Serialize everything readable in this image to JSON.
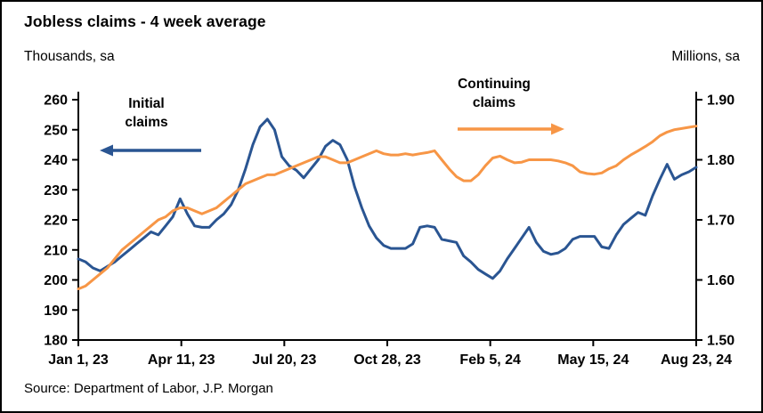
{
  "title": "Jobless claims - 4 week average",
  "left_axis_title": "Thousands, sa",
  "right_axis_title": "Millions, sa",
  "source": "Source: Department of Labor, J.P. Morgan",
  "annotations": {
    "initial": {
      "line1": "Initial",
      "line2": "claims",
      "arrow_direction": "left"
    },
    "continuing": {
      "line1": "Continuing",
      "line2": "claims",
      "arrow_direction": "right"
    }
  },
  "chart_data": {
    "type": "line",
    "title": "Jobless claims - 4 week average",
    "grid": false,
    "legend": "annotated arrows on plot",
    "x_tick_labels": [
      "Jan 1, 23",
      "Apr 11, 23",
      "Jul 20, 23",
      "Oct 28, 23",
      "Feb 5, 24",
      "May 15, 24",
      "Aug 23, 24"
    ],
    "left_axis": {
      "title": "Thousands, sa",
      "min": 180,
      "max": 260,
      "ticks": [
        260,
        250,
        240,
        230,
        220,
        210,
        200,
        190,
        180
      ]
    },
    "right_axis": {
      "title": "Millions, sa",
      "min": 1.5,
      "max": 1.9,
      "ticks": [
        "1.90",
        "1.80",
        "1.70",
        "1.60",
        "1.50"
      ]
    },
    "series": [
      {
        "name": "Initial claims",
        "axis": "left",
        "unit": "thousands, sa",
        "color": "#2a5592",
        "values": [
          207,
          206,
          204,
          203,
          204.5,
          206,
          208,
          210,
          212,
          214,
          216,
          215,
          218,
          221,
          227,
          222,
          218,
          217.5,
          217.5,
          220,
          222,
          225,
          230,
          237,
          245,
          251,
          253.5,
          250,
          241,
          238,
          236.5,
          234,
          237,
          240,
          244.5,
          246.5,
          245,
          240,
          231,
          224,
          218,
          214,
          211.5,
          210.5,
          210.5,
          210.5,
          212,
          217.5,
          218,
          217.5,
          213.5,
          213,
          212.5,
          208,
          206,
          203.5,
          202,
          200.5,
          203,
          207,
          210.5,
          214,
          217.5,
          212.5,
          209.5,
          208.5,
          209,
          210.5,
          213.5,
          214.5,
          214.5,
          214.5,
          211,
          210.5,
          215,
          218.5,
          220.5,
          222.5,
          221.5,
          228,
          233.5,
          238.5,
          233.5,
          235,
          236,
          237.5
        ]
      },
      {
        "name": "Continuing claims",
        "axis": "right",
        "unit": "millions, sa",
        "color": "#F79646",
        "values": [
          1.585,
          1.59,
          1.6,
          1.61,
          1.62,
          1.635,
          1.65,
          1.66,
          1.67,
          1.68,
          1.69,
          1.7,
          1.705,
          1.715,
          1.72,
          1.72,
          1.715,
          1.71,
          1.715,
          1.72,
          1.73,
          1.74,
          1.75,
          1.76,
          1.765,
          1.77,
          1.775,
          1.775,
          1.78,
          1.785,
          1.79,
          1.795,
          1.8,
          1.805,
          1.805,
          1.8,
          1.795,
          1.795,
          1.8,
          1.805,
          1.81,
          1.815,
          1.81,
          1.808,
          1.808,
          1.81,
          1.808,
          1.81,
          1.812,
          1.815,
          1.8,
          1.785,
          1.772,
          1.765,
          1.765,
          1.775,
          1.79,
          1.803,
          1.806,
          1.8,
          1.795,
          1.796,
          1.8,
          1.8,
          1.8,
          1.8,
          1.798,
          1.795,
          1.79,
          1.78,
          1.777,
          1.776,
          1.778,
          1.785,
          1.79,
          1.8,
          1.808,
          1.815,
          1.822,
          1.83,
          1.84,
          1.846,
          1.85,
          1.852,
          1.854,
          1.856
        ]
      }
    ]
  }
}
